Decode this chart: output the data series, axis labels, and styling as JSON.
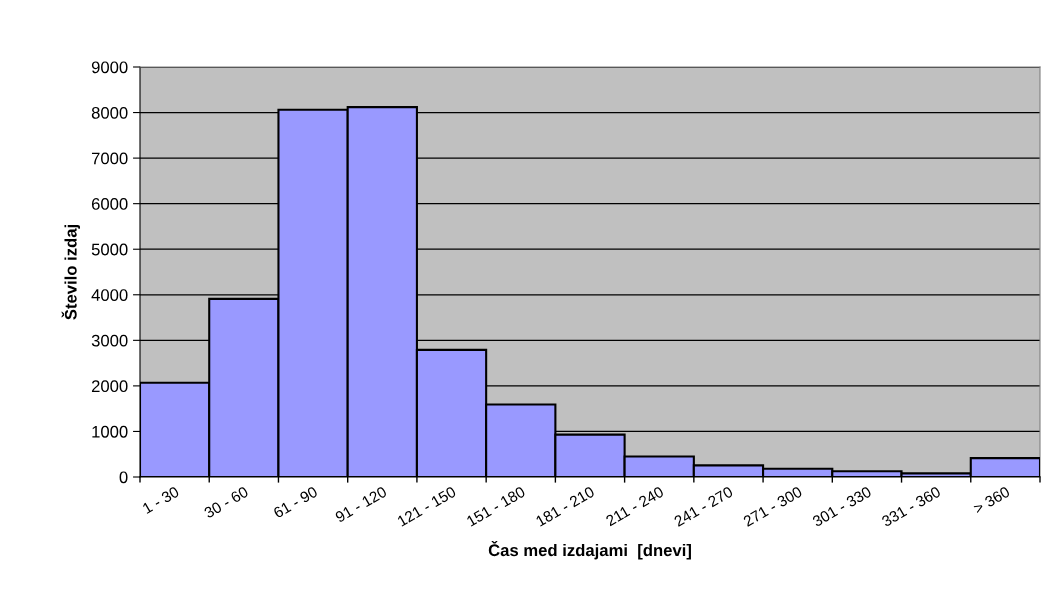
{
  "chart_data": {
    "type": "bar",
    "xlabel": "Čas med izdajami  [dnevi]",
    "ylabel": "Število izdaj",
    "categories": [
      "1 - 30",
      "30 - 60",
      "61 - 90",
      "91 - 120",
      "121 - 150",
      "151 - 180",
      "181 - 210",
      "211 - 240",
      "241 - 270",
      "271 - 300",
      "301 - 330",
      "331 - 360",
      "> 360"
    ],
    "values": [
      2070,
      3910,
      8060,
      8120,
      2790,
      1590,
      930,
      450,
      255,
      180,
      125,
      80,
      415
    ],
    "color": "#9999ff",
    "ylim": [
      0,
      9000
    ],
    "yticks": [
      0,
      1000,
      2000,
      3000,
      4000,
      5000,
      6000,
      7000,
      8000,
      9000
    ],
    "grid": "y",
    "legend": false
  }
}
